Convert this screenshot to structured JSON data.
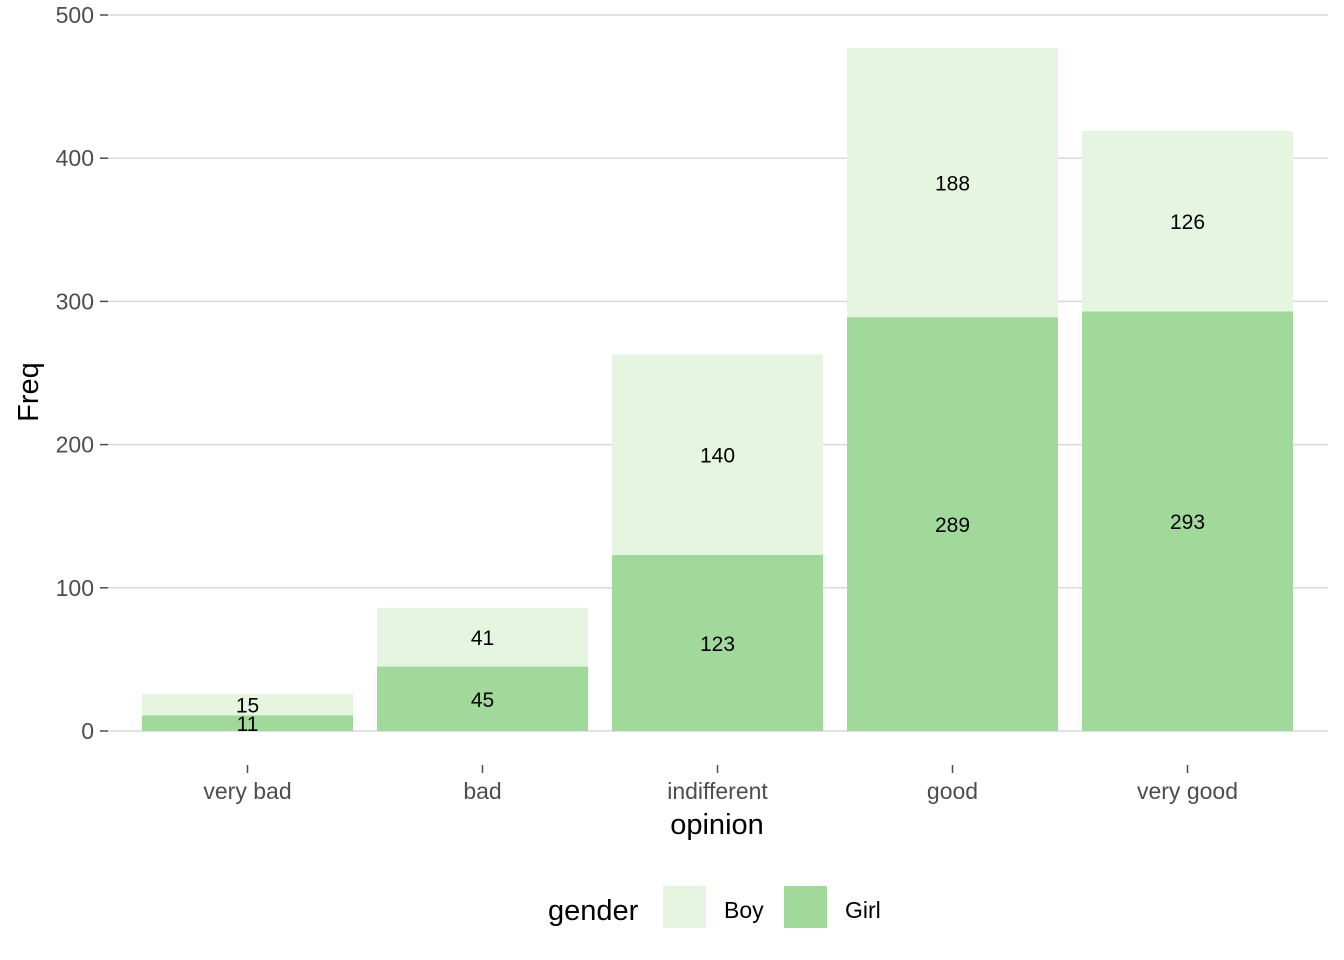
{
  "chart_data": {
    "type": "bar",
    "stacked": true,
    "categories": [
      "very bad",
      "bad",
      "indifferent",
      "good",
      "very good"
    ],
    "series": [
      {
        "name": "Girl",
        "values": [
          11,
          45,
          123,
          289,
          293
        ],
        "color": "#a1d99b"
      },
      {
        "name": "Boy",
        "values": [
          15,
          41,
          140,
          188,
          126
        ],
        "color": "#e5f5e0"
      }
    ],
    "xlabel": "opinion",
    "ylabel": "Freq",
    "ylim": [
      0,
      500
    ],
    "yticks": [
      0,
      100,
      200,
      300,
      400,
      500
    ],
    "grid": "horizontal",
    "grid_color": "#d9d9d9",
    "legend": {
      "title": "gender",
      "placement": "bottom",
      "entries": [
        "Boy",
        "Girl"
      ]
    }
  }
}
